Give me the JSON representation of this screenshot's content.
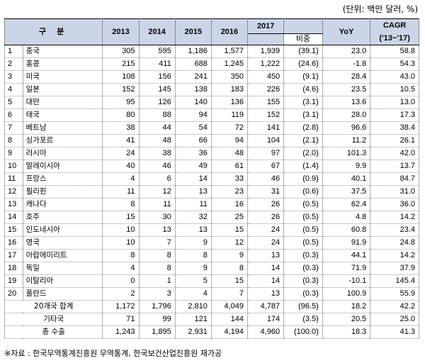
{
  "unit_note": "(단위: 백만 달러, %)",
  "headers": {
    "category": "구 분",
    "years": [
      "2013",
      "2014",
      "2015",
      "2016",
      "2017"
    ],
    "share": "비중",
    "yoy": "YoY",
    "cagr_line1": "CAGR",
    "cagr_line2": "('13~'17)"
  },
  "rows": [
    {
      "rank": "1",
      "country": "중국",
      "values": [
        "305",
        "595",
        "1,186",
        "1,577",
        "1,939"
      ],
      "share": "(39.1)",
      "yoy": "23.0",
      "cagr": "58.8"
    },
    {
      "rank": "2",
      "country": "홍콩",
      "values": [
        "215",
        "411",
        "688",
        "1,245",
        "1,222"
      ],
      "share": "(24.6)",
      "yoy": "-1.8",
      "cagr": "54.3"
    },
    {
      "rank": "3",
      "country": "미국",
      "values": [
        "108",
        "156",
        "241",
        "350",
        "450"
      ],
      "share": "(9.1)",
      "yoy": "28.4",
      "cagr": "43.0"
    },
    {
      "rank": "4",
      "country": "일본",
      "values": [
        "152",
        "145",
        "138",
        "183",
        "226"
      ],
      "share": "(4.6)",
      "yoy": "23.5",
      "cagr": "10.5"
    },
    {
      "rank": "5",
      "country": "대만",
      "values": [
        "95",
        "126",
        "140",
        "136",
        "155"
      ],
      "share": "(3.1)",
      "yoy": "13.6",
      "cagr": "13.0"
    },
    {
      "rank": "6",
      "country": "태국",
      "values": [
        "80",
        "88",
        "94",
        "119",
        "152"
      ],
      "share": "(3.1)",
      "yoy": "28.0",
      "cagr": "17.3"
    },
    {
      "rank": "7",
      "country": "베트남",
      "values": [
        "38",
        "44",
        "54",
        "72",
        "141"
      ],
      "share": "(2.8)",
      "yoy": "96.6",
      "cagr": "38.4"
    },
    {
      "rank": "8",
      "country": "싱가포르",
      "values": [
        "41",
        "48",
        "66",
        "94",
        "104"
      ],
      "share": "(2.1)",
      "yoy": "11.2",
      "cagr": "26.1"
    },
    {
      "rank": "9",
      "country": "러시아",
      "values": [
        "24",
        "38",
        "36",
        "48",
        "97"
      ],
      "share": "(2.0)",
      "yoy": "101.3",
      "cagr": "42.0"
    },
    {
      "rank": "10",
      "country": "말레이시아",
      "values": [
        "40",
        "46",
        "49",
        "61",
        "67"
      ],
      "share": "(1.4)",
      "yoy": "9.9",
      "cagr": "13.7"
    },
    {
      "rank": "11",
      "country": "프랑스",
      "values": [
        "4",
        "6",
        "14",
        "33",
        "46"
      ],
      "share": "(0.9)",
      "yoy": "40.1",
      "cagr": "84.7"
    },
    {
      "rank": "12",
      "country": "필리핀",
      "values": [
        "11",
        "12",
        "13",
        "23",
        "31"
      ],
      "share": "(0.6)",
      "yoy": "37.5",
      "cagr": "31.0"
    },
    {
      "rank": "13",
      "country": "캐나다",
      "values": [
        "8",
        "11",
        "11",
        "16",
        "26"
      ],
      "share": "(0.5)",
      "yoy": "62.4",
      "cagr": "36.0"
    },
    {
      "rank": "14",
      "country": "호주",
      "values": [
        "15",
        "30",
        "32",
        "25",
        "26"
      ],
      "share": "(0.5)",
      "yoy": "4.8",
      "cagr": "14.2"
    },
    {
      "rank": "15",
      "country": "인도네시아",
      "values": [
        "10",
        "13",
        "13",
        "15",
        "24"
      ],
      "share": "(0.5)",
      "yoy": "60.8",
      "cagr": "23.4"
    },
    {
      "rank": "16",
      "country": "영국",
      "values": [
        "10",
        "7",
        "9",
        "12",
        "24"
      ],
      "share": "(0.5)",
      "yoy": "91.9",
      "cagr": "24.8"
    },
    {
      "rank": "17",
      "country": "아랍에미리트",
      "values": [
        "8",
        "8",
        "8",
        "9",
        "13"
      ],
      "share": "(0.3)",
      "yoy": "44.1",
      "cagr": "14.2"
    },
    {
      "rank": "18",
      "country": "독일",
      "values": [
        "4",
        "8",
        "9",
        "8",
        "14"
      ],
      "share": "(0.3)",
      "yoy": "71.9",
      "cagr": "37.9"
    },
    {
      "rank": "19",
      "country": "이탈리아",
      "values": [
        "0",
        "1",
        "5",
        "15",
        "14"
      ],
      "share": "(0.3)",
      "yoy": "-10.1",
      "cagr": "145.4"
    },
    {
      "rank": "20",
      "country": "폴란드",
      "values": [
        "2",
        "3",
        "4",
        "7",
        "13"
      ],
      "share": "(0.3)",
      "yoy": "100.9",
      "cagr": "55.9"
    }
  ],
  "summary_rows": [
    {
      "label": "20개국 합계",
      "values": [
        "1,172",
        "1,796",
        "2,810",
        "4,049",
        "4,787"
      ],
      "share": "(96.5)",
      "yoy": "18.2",
      "cagr": "42.2"
    },
    {
      "label": "기타국",
      "values": [
        "71",
        "99",
        "121",
        "144",
        "174"
      ],
      "share": "(3.5)",
      "yoy": "20.5",
      "cagr": "25.0"
    },
    {
      "label": "총 수출",
      "values": [
        "1,243",
        "1,895",
        "2,931",
        "4,194",
        "4,960"
      ],
      "share": "(100.0)",
      "yoy": "18.3",
      "cagr": "41.3"
    }
  ],
  "source": "※자료 : 한국무역통계진흥원 무역통계, 한국보건산업진흥원 재가공",
  "colors": {
    "header_bg": "#ccd5e8"
  }
}
